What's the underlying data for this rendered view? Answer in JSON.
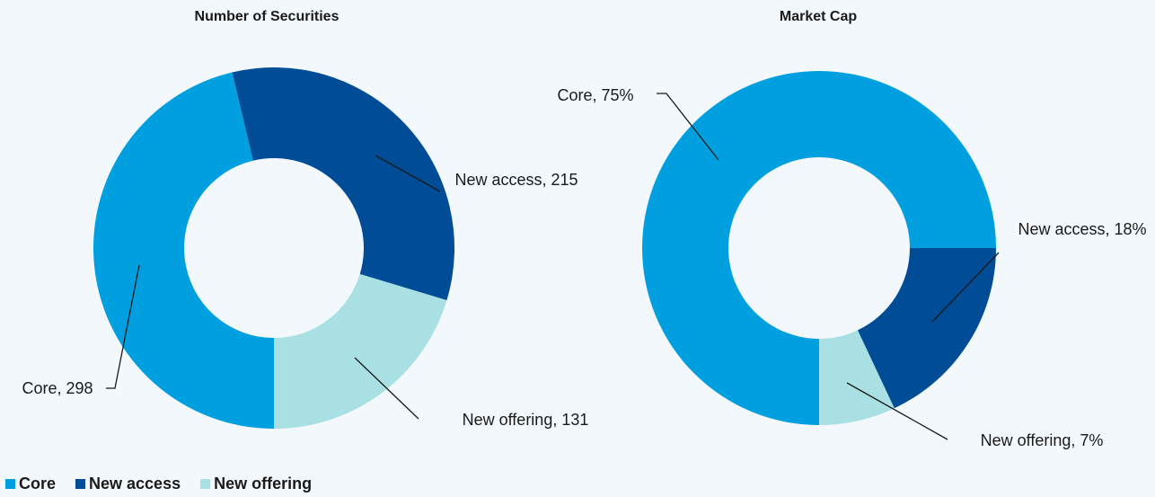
{
  "chart_data": [
    {
      "type": "donut",
      "title": "Number of Securities",
      "categories": [
        "Core",
        "New access",
        "New offering"
      ],
      "values": [
        298,
        215,
        131
      ],
      "value_labels": [
        "Core, 298",
        "New access, 215",
        "New offering, 131"
      ],
      "colors": [
        "#009fdf",
        "#004c97",
        "#a8e0e4"
      ]
    },
    {
      "type": "donut",
      "title": "Market Cap",
      "categories": [
        "Core",
        "New access",
        "New offering"
      ],
      "values": [
        75,
        18,
        7
      ],
      "value_labels": [
        "Core, 75%",
        "New access, 18%",
        "New offering, 7%"
      ],
      "colors": [
        "#009fdf",
        "#004c97",
        "#a8e0e4"
      ]
    }
  ]
}
